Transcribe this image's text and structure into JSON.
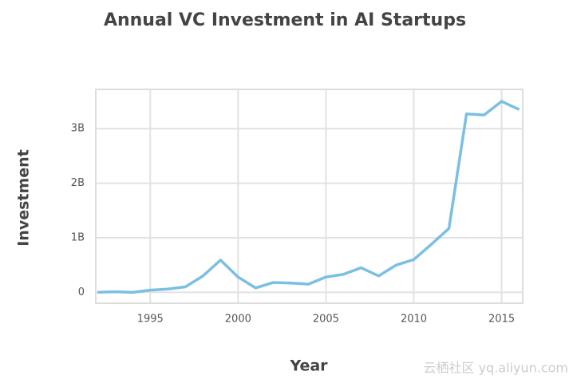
{
  "chart_data": {
    "type": "line",
    "title": "Annual VC Investment in AI Startups",
    "x_label": "Year",
    "y_label": "Investment",
    "x": [
      1992,
      1993,
      1994,
      1995,
      1996,
      1997,
      1998,
      1999,
      2000,
      2001,
      2002,
      2003,
      2004,
      2005,
      2006,
      2007,
      2008,
      2009,
      2010,
      2011,
      2012,
      2013,
      2014,
      2015,
      2016
    ],
    "series": [
      {
        "name": "Investment",
        "color": "#7bbfe2",
        "values": [
          0,
          0.01,
          0,
          0.04,
          0.06,
          0.1,
          0.3,
          0.59,
          0.28,
          0.08,
          0.18,
          0.17,
          0.15,
          0.28,
          0.33,
          0.45,
          0.3,
          0.5,
          0.6,
          0.88,
          1.17,
          3.27,
          3.25,
          3.5,
          3.35
        ]
      }
    ],
    "xlim": [
      1991.9,
      2016.2
    ],
    "ylim": [
      -0.2,
      3.72
    ],
    "xticks": [
      1995,
      2000,
      2005,
      2010,
      2015
    ],
    "yticks": [
      0,
      {
        "value": 1,
        "label": "1B"
      },
      {
        "value": 2,
        "label": "2B"
      },
      {
        "value": 3,
        "label": "3B"
      }
    ],
    "grid": true
  },
  "watermark": "云栖社区 yq.aliyun.com"
}
